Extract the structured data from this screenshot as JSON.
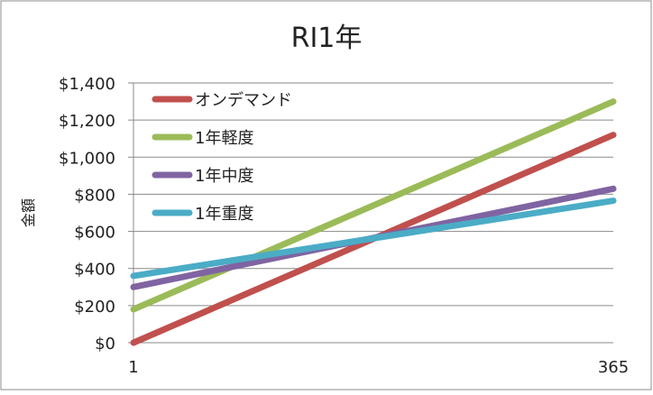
{
  "chart_data": {
    "type": "line",
    "title": "RI1年",
    "xlabel": "",
    "ylabel": "金額",
    "xlim": [
      1,
      365
    ],
    "ylim": [
      0,
      1400
    ],
    "x_ticks": [
      "1",
      "365"
    ],
    "y_ticks": [
      {
        "value": 0,
        "label": "$0"
      },
      {
        "value": 200,
        "label": "$200"
      },
      {
        "value": 400,
        "label": "$400"
      },
      {
        "value": 600,
        "label": "$600"
      },
      {
        "value": 800,
        "label": "$800"
      },
      {
        "value": 1000,
        "label": "$1,000"
      },
      {
        "value": 1200,
        "label": "$1,200"
      },
      {
        "value": 1400,
        "label": "$1,400"
      }
    ],
    "grid": {
      "horizontal": true,
      "vertical": false
    },
    "legend_position": "top-left",
    "series": [
      {
        "name": "オンデマンド",
        "color": "#c0504d",
        "x": [
          1,
          365
        ],
        "y": [
          0,
          1120
        ]
      },
      {
        "name": "1年軽度",
        "color": "#9bbb59",
        "x": [
          1,
          365
        ],
        "y": [
          180,
          1300
        ]
      },
      {
        "name": "1年中度",
        "color": "#8064a2",
        "x": [
          1,
          365
        ],
        "y": [
          300,
          830
        ]
      },
      {
        "name": "1年重度",
        "color": "#4bacc6",
        "x": [
          1,
          365
        ],
        "y": [
          360,
          765
        ]
      }
    ]
  }
}
